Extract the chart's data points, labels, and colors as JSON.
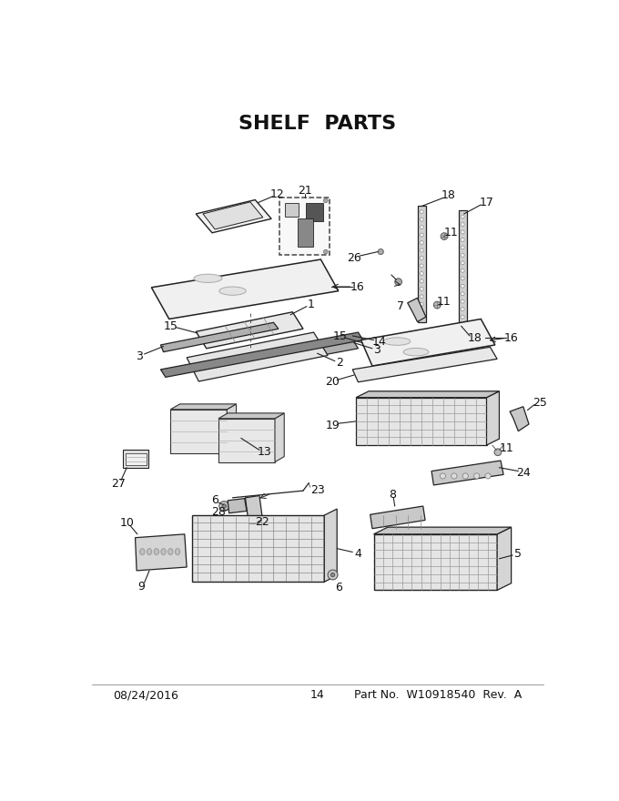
{
  "title": "SHELF  PARTS",
  "title_fontsize": 16,
  "title_weight": "bold",
  "footer_left": "08/24/2016",
  "footer_center": "14",
  "footer_right": "Part No.  W10918540  Rev.  A",
  "footer_fontsize": 9,
  "bg_color": "#ffffff",
  "line_color": "#222222",
  "label_fontsize": 9,
  "fig_width": 6.8,
  "fig_height": 8.8,
  "dpi": 100
}
